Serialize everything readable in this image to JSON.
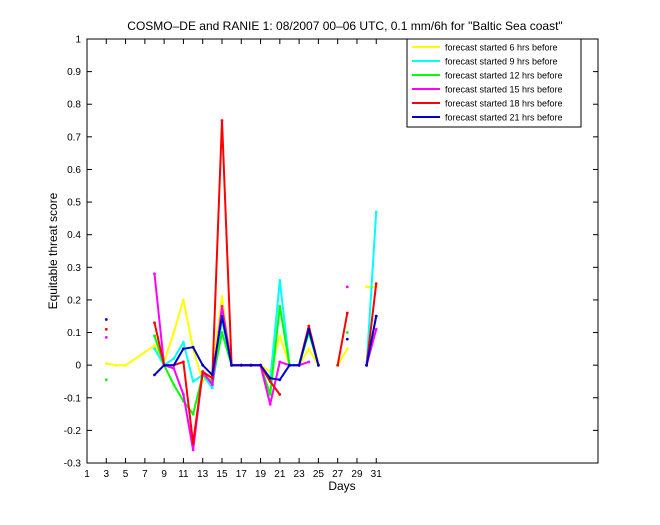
{
  "chart_data": {
    "type": "line",
    "title": "COSMO–DE and RANIE 1: 08/2007 00–06 UTC, 0.1 mm/6h for \"Baltic Sea coast\"",
    "xlabel": "Days",
    "ylabel": "Equitable threat score",
    "xlim": [
      1,
      54
    ],
    "ylim": [
      -0.3,
      1
    ],
    "xticks": [
      1,
      3,
      5,
      7,
      9,
      11,
      13,
      15,
      17,
      19,
      21,
      23,
      25,
      27,
      29,
      31
    ],
    "yticks": [
      -0.3,
      -0.2,
      -0.1,
      0,
      0.1,
      0.2,
      0.3,
      0.4,
      0.5,
      0.6,
      0.7,
      0.8,
      0.9,
      1
    ],
    "ytick_labels": [
      "-0.3",
      "-0.2",
      "-0.1",
      "0",
      "0.1",
      "0.2",
      "0.3",
      "0.4",
      "0.5",
      "0.6",
      "0.7",
      "0.8",
      "0.9",
      "1"
    ],
    "legend_position": "top-right",
    "x": [
      3,
      4,
      5,
      8,
      9,
      10,
      11,
      12,
      13,
      14,
      15,
      16,
      17,
      18,
      19,
      20,
      21,
      22,
      23,
      24,
      25,
      26,
      27,
      28,
      29,
      30,
      31
    ],
    "series": [
      {
        "name": "forecast started 6 hrs before",
        "color": "#ffff00",
        "values": [
          0.005,
          0.0,
          0.0,
          0.06,
          0.01,
          0.1,
          0.2,
          0.05,
          -0.05,
          -0.02,
          0.21,
          0.0,
          0.0,
          0.0,
          0.0,
          -0.02,
          0.09,
          0.0,
          0.0,
          0.05,
          0.0,
          null,
          0.0,
          0.05,
          null,
          0.24,
          0.24
        ]
      },
      {
        "name": "forecast started 9 hrs before",
        "color": "#00ffff",
        "values": [
          null,
          null,
          null,
          0.05,
          0.0,
          0.02,
          0.07,
          -0.05,
          -0.03,
          -0.07,
          0.14,
          0.0,
          0.0,
          0.0,
          0.0,
          -0.05,
          0.26,
          0.0,
          0.0,
          0.12,
          0.0,
          null,
          null,
          null,
          null,
          0.0,
          0.47
        ]
      },
      {
        "name": "forecast started 12 hrs before",
        "color": "#00ff00",
        "values": [
          -0.045,
          null,
          null,
          0.09,
          0.0,
          -0.06,
          -0.11,
          -0.15,
          -0.03,
          -0.05,
          0.1,
          0.0,
          0.0,
          0.0,
          0.0,
          -0.09,
          0.18,
          0.0,
          0.0,
          0.1,
          0.0,
          null,
          null,
          0.1,
          null,
          0.0,
          0.15
        ]
      },
      {
        "name": "forecast started 15 hrs before",
        "color": "#ff00ff",
        "values": [
          0.085,
          null,
          null,
          0.28,
          0.0,
          -0.01,
          -0.09,
          -0.26,
          -0.02,
          -0.06,
          0.18,
          0.0,
          0.0,
          0.0,
          0.0,
          -0.12,
          0.01,
          0.0,
          0.0,
          0.01,
          null,
          null,
          null,
          0.24,
          null,
          0.0,
          0.11
        ]
      },
      {
        "name": "forecast started 18 hrs before",
        "color": "#ff0000",
        "values": [
          0.11,
          null,
          null,
          0.13,
          0.0,
          0.0,
          0.01,
          -0.24,
          -0.02,
          -0.04,
          0.75,
          0.0,
          0.0,
          0.0,
          0.0,
          -0.05,
          -0.09,
          null,
          0.0,
          0.12,
          0.0,
          null,
          0.0,
          0.16,
          null,
          0.0,
          0.25
        ]
      },
      {
        "name": "forecast started 21 hrs before",
        "color": "#0000cc",
        "values": [
          0.14,
          null,
          null,
          -0.03,
          0.0,
          0.0,
          0.05,
          0.055,
          0.0,
          -0.03,
          0.15,
          0.0,
          0.0,
          0.0,
          0.0,
          -0.04,
          -0.045,
          0.0,
          0.0,
          0.11,
          0.0,
          null,
          null,
          0.08,
          null,
          0.0,
          0.15
        ]
      }
    ]
  }
}
